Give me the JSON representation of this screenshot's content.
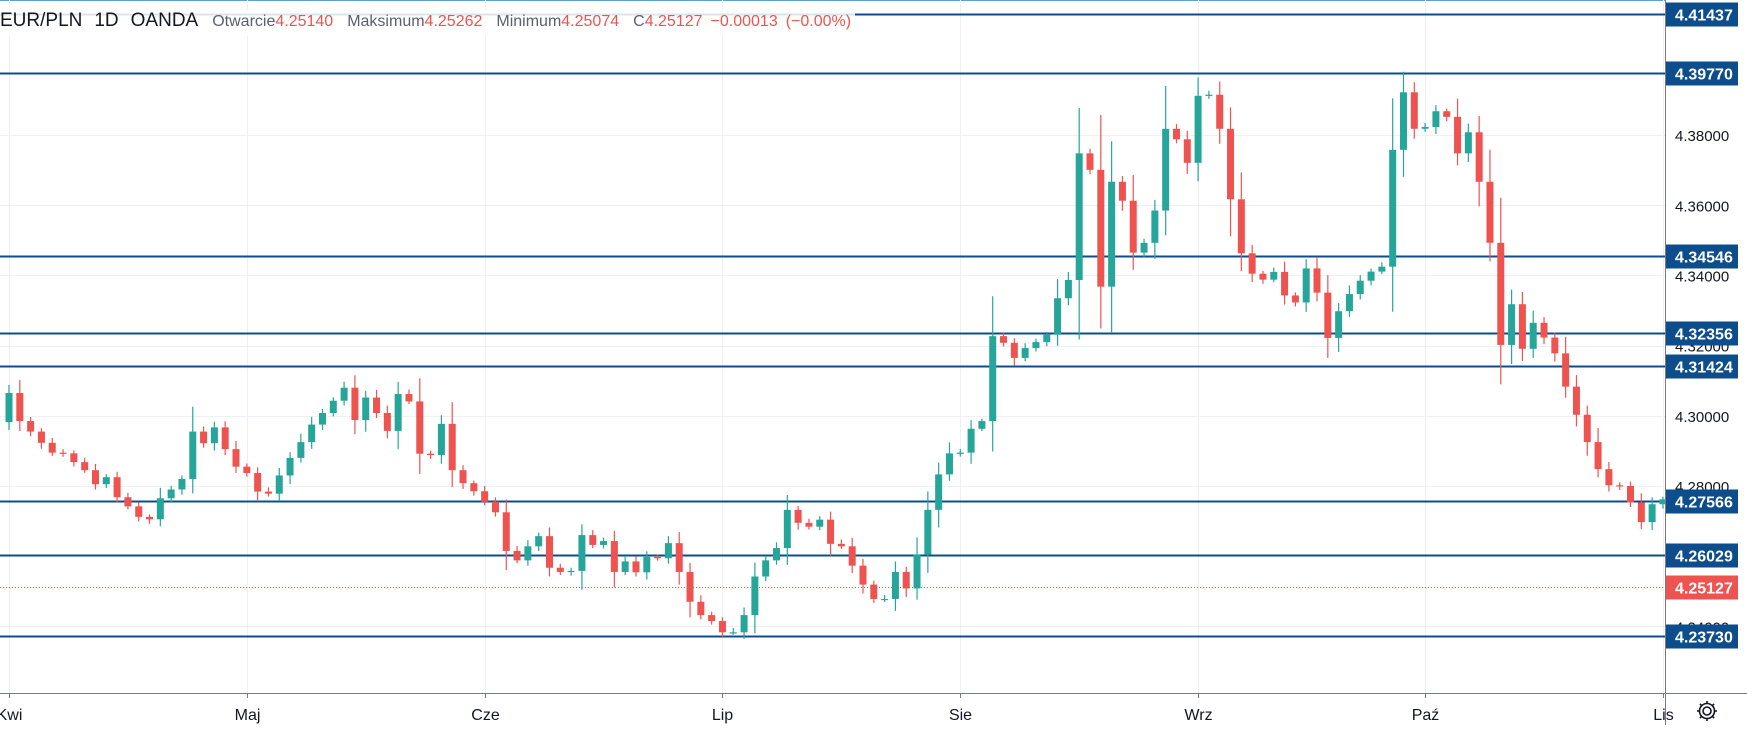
{
  "legend": {
    "symbol": "EUR/PLN",
    "interval": "1D",
    "source": "OANDA",
    "open_label": "Otwarcie",
    "open_value": "4.25140",
    "high_label": "Maksimum",
    "high_value": "4.25262",
    "low_label": "Minimum",
    "low_value": "4.25074",
    "close_label": "C",
    "close_value": "4.25127",
    "change_value": "−0.00013",
    "change_pct": "(−0.00%)"
  },
  "toolbar": {
    "settings_icon": "gear-icon"
  },
  "colors": {
    "up": "#26a69a",
    "down": "#ef5350",
    "level_line": "#0d4d8c",
    "grid": "#eef0f3",
    "axis_text": "#5d606b",
    "price_badge": "#ef5350"
  },
  "chart_data": {
    "type": "candlestick",
    "title": "EUR/PLN, 1D, OANDA",
    "y_axis": {
      "range": [
        4.221,
        4.4185
      ],
      "ticks": [
        "4.30000",
        "4.34000",
        "4.36000",
        "4.38000"
      ],
      "partially_hidden_ticks": [
        {
          "value": 4.32,
          "text": "4.32000"
        },
        {
          "value": 4.28,
          "text": "4.28000"
        },
        {
          "value": 4.24,
          "text": "4.24000"
        }
      ]
    },
    "x_axis": {
      "labels": [
        {
          "text": "Kwi",
          "index": 0
        },
        {
          "text": "Maj",
          "index": 22
        },
        {
          "text": "Cze",
          "index": 44
        },
        {
          "text": "Lip",
          "index": 66
        },
        {
          "text": "Sie",
          "index": 88
        },
        {
          "text": "Wrz",
          "index": 110
        },
        {
          "text": "Paź",
          "index": 131
        },
        {
          "text": "Lis",
          "index": 153
        }
      ]
    },
    "grid": true,
    "horizontal_levels": [
      {
        "value": 4.41437,
        "label": "4.41437"
      },
      {
        "value": 4.3977,
        "label": "4.39770"
      },
      {
        "value": 4.34546,
        "label": "4.34546"
      },
      {
        "value": 4.32356,
        "label": "4.32356"
      },
      {
        "value": 4.31424,
        "label": "4.31424"
      },
      {
        "value": 4.27566,
        "label": "4.27566"
      },
      {
        "value": 4.26029,
        "label": "4.26029"
      },
      {
        "value": 4.2373,
        "label": "4.23730"
      }
    ],
    "last_price": {
      "value": 4.25127,
      "label": "4.25127"
    },
    "closes": [
      4.3065,
      4.2985,
      4.2955,
      4.2923,
      4.2895,
      4.2893,
      4.2868,
      4.2845,
      4.2805,
      4.2825,
      4.2768,
      4.2742,
      4.2712,
      4.2705,
      4.2765,
      4.279,
      4.282,
      4.2955,
      4.2922,
      4.2967,
      4.2905,
      4.2855,
      4.2837,
      4.2784,
      4.2778,
      4.283,
      4.288,
      4.2925,
      4.2975,
      4.3008,
      4.3043,
      4.308,
      4.2988,
      4.3052,
      4.3008,
      4.2957,
      4.3062,
      4.3041,
      4.2892,
      4.2888,
      4.2977,
      4.2845,
      4.2808,
      4.2785,
      4.2755,
      4.2725,
      4.2615,
      4.2588,
      4.2628,
      4.2657,
      4.2567,
      4.2555,
      4.2558,
      4.266,
      4.2632,
      4.2643,
      4.2555,
      4.2585,
      4.2554,
      4.2598,
      4.2594,
      4.2637,
      4.2555,
      4.247,
      4.2432,
      4.2415,
      4.2383,
      4.2383,
      4.2432,
      4.2542,
      4.2588,
      4.2623,
      4.2732,
      4.2695,
      4.2684,
      4.2704,
      4.2635,
      4.2628,
      4.2573,
      4.2519,
      4.2478,
      4.2478,
      4.2555,
      4.2508,
      4.2605,
      4.2732,
      4.2833,
      4.2893,
      4.2895,
      4.2963,
      4.2985,
      4.3227,
      4.3208,
      4.3165,
      4.3193,
      4.321,
      4.3231,
      4.3335,
      4.3387,
      4.3748,
      4.3701,
      4.3368,
      4.3667,
      4.3613,
      4.3465,
      4.3493,
      4.3585,
      4.3818,
      4.3788,
      4.3721,
      4.3912,
      4.3915,
      4.3818,
      4.3617,
      4.3463,
      4.3405,
      4.3388,
      4.341,
      4.3343,
      4.3323,
      4.342,
      4.3351,
      4.3222,
      4.3298,
      4.3347,
      4.3385,
      4.3411,
      4.3425,
      4.3758,
      4.3922,
      4.3818,
      4.3823,
      4.3868,
      4.3852,
      4.3748,
      4.3808,
      4.3667,
      4.3493,
      4.3202,
      4.3318,
      4.3191,
      4.3265,
      4.3223,
      4.3178,
      4.3083,
      4.3003,
      4.2925,
      4.2848,
      4.2802,
      4.28,
      4.2753,
      4.2697,
      4.2748,
      4.2762,
      4.2745,
      4.2712,
      4.2672,
      4.2587,
      4.2642,
      4.2513,
      4.25127
    ],
    "opens": [
      4.2982,
      4.3065,
      4.2985,
      4.2955,
      4.2923,
      4.2895,
      4.2893,
      4.2868,
      4.2845,
      4.2805,
      4.2825,
      4.2768,
      4.2742,
      4.2712,
      4.2705,
      4.2765,
      4.279,
      4.282,
      4.2955,
      4.2922,
      4.2967,
      4.2905,
      4.2855,
      4.2837,
      4.2784,
      4.2778,
      4.283,
      4.288,
      4.2925,
      4.2975,
      4.3008,
      4.3043,
      4.308,
      4.2988,
      4.3052,
      4.3008,
      4.2957,
      4.3062,
      4.3041,
      4.2892,
      4.2888,
      4.2977,
      4.2845,
      4.2808,
      4.2785,
      4.2755,
      4.2725,
      4.2615,
      4.2588,
      4.2628,
      4.2657,
      4.2567,
      4.2555,
      4.2558,
      4.266,
      4.2632,
      4.2643,
      4.2555,
      4.2585,
      4.2554,
      4.2598,
      4.2594,
      4.2637,
      4.2555,
      4.247,
      4.2432,
      4.2415,
      4.2383,
      4.2383,
      4.2432,
      4.2542,
      4.2588,
      4.2623,
      4.2732,
      4.2695,
      4.2684,
      4.2704,
      4.2635,
      4.2628,
      4.2573,
      4.2519,
      4.2478,
      4.2478,
      4.2555,
      4.2508,
      4.2605,
      4.2732,
      4.2833,
      4.2893,
      4.2895,
      4.2963,
      4.2985,
      4.3227,
      4.3208,
      4.3165,
      4.3193,
      4.321,
      4.3231,
      4.3335,
      4.3387,
      4.3748,
      4.3701,
      4.3368,
      4.3667,
      4.3613,
      4.3465,
      4.3493,
      4.3585,
      4.3818,
      4.3788,
      4.3721,
      4.3912,
      4.3915,
      4.3818,
      4.3617,
      4.3463,
      4.3405,
      4.3388,
      4.341,
      4.3343,
      4.3323,
      4.342,
      4.3351,
      4.3222,
      4.3298,
      4.3347,
      4.3385,
      4.3411,
      4.3425,
      4.3758,
      4.3922,
      4.3818,
      4.3823,
      4.3868,
      4.3852,
      4.3748,
      4.3808,
      4.3667,
      4.3493,
      4.3202,
      4.3318,
      4.3191,
      4.3265,
      4.3223,
      4.3178,
      4.3083,
      4.3003,
      4.2925,
      4.2848,
      4.2802,
      4.28,
      4.2753,
      4.2697,
      4.2748,
      4.2762,
      4.2745,
      4.2712,
      4.2672,
      4.2587,
      4.2642,
      4.2514
    ]
  }
}
